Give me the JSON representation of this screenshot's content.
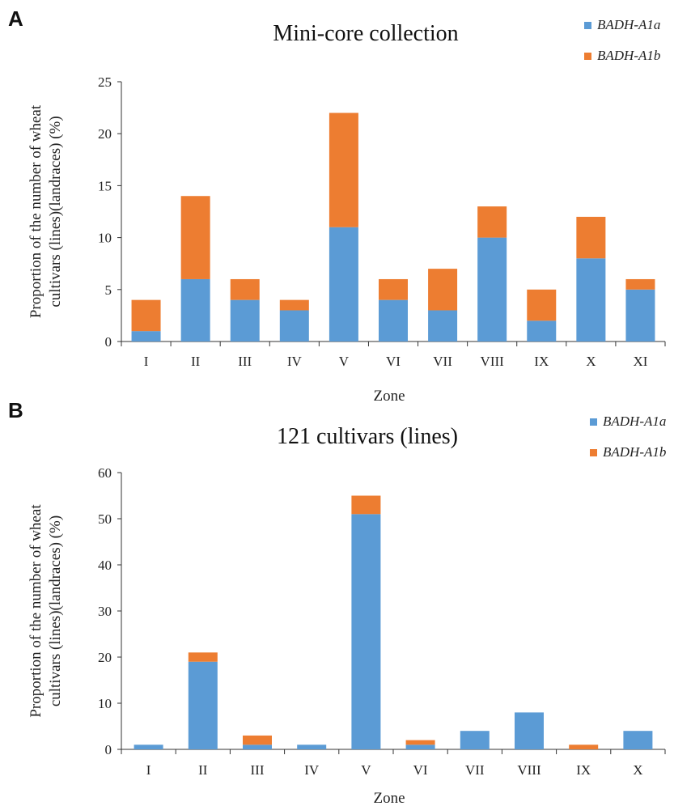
{
  "chart_data": [
    {
      "panel": "A",
      "type": "bar",
      "stacked": true,
      "title": "Mini-core collection",
      "xlabel": "Zone",
      "ylabel": "Proportion of the number of wheat cultivars (lines)(landraces) (%)",
      "ylabel_lines": [
        "Proportion of the number of wheat",
        "cultivars (lines)(landraces) (%)"
      ],
      "ylim": [
        0,
        25
      ],
      "yticks": [
        0,
        5,
        10,
        15,
        20,
        25
      ],
      "categories": [
        "I",
        "II",
        "III",
        "IV",
        "V",
        "VI",
        "VII",
        "VIII",
        "IX",
        "X",
        "XI"
      ],
      "series": [
        {
          "name": "BADH-A1a",
          "color": "#5b9bd5",
          "values": [
            1,
            6,
            4,
            3,
            11,
            4,
            3,
            10,
            2,
            8,
            5
          ]
        },
        {
          "name": "BADH-A1b",
          "color": "#ed7d31",
          "values": [
            3,
            8,
            2,
            1,
            11,
            2,
            4,
            3,
            3,
            4,
            1
          ]
        }
      ],
      "legend": "top-right"
    },
    {
      "panel": "B",
      "type": "bar",
      "stacked": true,
      "title": "121 cultivars (lines)",
      "xlabel": "Zone",
      "ylabel": "Proportion of the number of wheat cultivars (lines)(landraces) (%)",
      "ylabel_lines": [
        "Proportion of the number of wheat",
        "cultivars (lines)(landraces) (%)"
      ],
      "ylim": [
        0,
        60
      ],
      "yticks": [
        0,
        10,
        20,
        30,
        40,
        50,
        60
      ],
      "categories": [
        "I",
        "II",
        "III",
        "IV",
        "V",
        "VI",
        "VII",
        "VIII",
        "IX",
        "X"
      ],
      "series": [
        {
          "name": "BADH-A1a",
          "color": "#5b9bd5",
          "values": [
            1,
            19,
            1,
            1,
            51,
            1,
            4,
            8,
            0,
            4
          ]
        },
        {
          "name": "BADH-A1b",
          "color": "#ed7d31",
          "values": [
            0,
            2,
            2,
            0,
            4,
            1,
            0,
            0,
            1,
            0
          ]
        }
      ],
      "legend": "top-right"
    }
  ],
  "panels": {
    "a_label": "A",
    "b_label": "B"
  }
}
